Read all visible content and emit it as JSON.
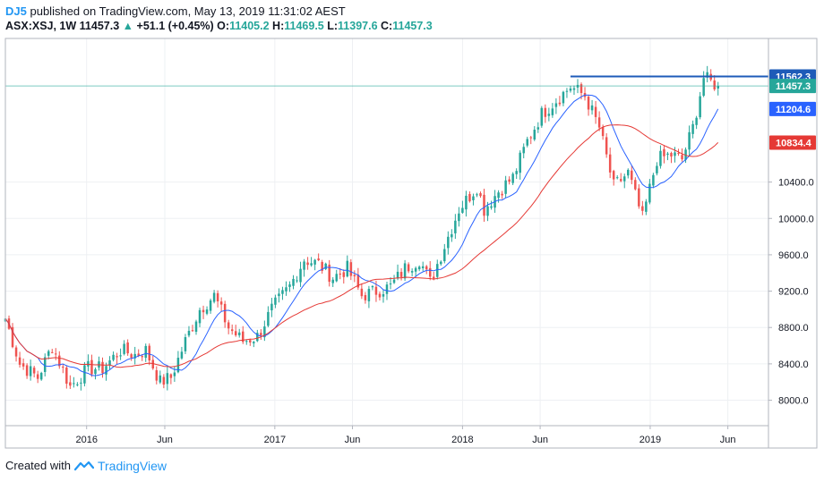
{
  "header": {
    "user": "DJ5",
    "published": "published on TradingView.com, May 13, 2019 11:31:02 AEST"
  },
  "ohlc": {
    "symbol": "ASX:XSJ, 1W",
    "last": "11457.3",
    "change": "+51.1 (+0.45%)",
    "o_label": "O:",
    "o": "11405.2",
    "h_label": "H:",
    "h": "11469.5",
    "l_label": "L:",
    "l": "11397.6",
    "c_label": "C:",
    "c": "11457.3"
  },
  "footer": {
    "created_with": "Created with",
    "brand": "TradingView"
  },
  "colors": {
    "up": "#26a69a",
    "down": "#ef5350",
    "ma_fast": "#2962ff",
    "ma_slow": "#e53935",
    "resistance": "#1e5bb8",
    "price_line": "#26a69a"
  },
  "chart_data": {
    "type": "candlestick",
    "title": "ASX:XSJ, 1W",
    "y_axis_ticks": [
      8000,
      8400,
      8800,
      9200,
      9600,
      10000,
      10400
    ],
    "y_axis_tick_labels": [
      "8000.0",
      "8400.0",
      "8800.0",
      "9200.0",
      "9600.0",
      "10000.0",
      "10400.0"
    ],
    "ylim": [
      7720,
      11980
    ],
    "x_axis_labels": [
      {
        "label": "2016",
        "date": "2016-01-01"
      },
      {
        "label": "Jun",
        "date": "2016-06-01"
      },
      {
        "label": "2017",
        "date": "2017-01-01"
      },
      {
        "label": "Jun",
        "date": "2017-06-01"
      },
      {
        "label": "2018",
        "date": "2018-01-01"
      },
      {
        "label": "Jun",
        "date": "2018-06-01"
      },
      {
        "label": "2019",
        "date": "2019-01-01"
      },
      {
        "label": "Jun",
        "date": "2019-06-01"
      }
    ],
    "x_range": [
      "2015-07-27",
      "2019-08-19"
    ],
    "price_tags": [
      {
        "label": "11562.3",
        "value": 11562.3,
        "kind": "resistance"
      },
      {
        "label": "11457.3",
        "value": 11457.3,
        "kind": "last"
      },
      {
        "label": "11204.6",
        "value": 11204.6,
        "kind": "ma_fast"
      },
      {
        "label": "10834.4",
        "value": 10834.4,
        "kind": "ma_slow"
      }
    ],
    "resistance_line": {
      "value": 11562.3,
      "start": "2018-07-30"
    },
    "trend_points": [
      [
        "2015-07-27",
        8900
      ],
      [
        "2015-08-24",
        8400
      ],
      [
        "2015-09-28",
        8250
      ],
      [
        "2015-10-26",
        8600
      ],
      [
        "2015-11-30",
        8150
      ],
      [
        "2016-01-04",
        8350
      ],
      [
        "2016-02-01",
        8350
      ],
      [
        "2016-03-07",
        8550
      ],
      [
        "2016-04-04",
        8500
      ],
      [
        "2016-04-25",
        8550
      ],
      [
        "2016-05-23",
        8200
      ],
      [
        "2016-06-13",
        8250
      ],
      [
        "2016-07-11",
        8650
      ],
      [
        "2016-08-08",
        9000
      ],
      [
        "2016-09-05",
        9150
      ],
      [
        "2016-10-03",
        8800
      ],
      [
        "2016-10-31",
        8650
      ],
      [
        "2016-11-28",
        8700
      ],
      [
        "2016-12-26",
        9000
      ],
      [
        "2017-01-30",
        9250
      ],
      [
        "2017-02-27",
        9550
      ],
      [
        "2017-03-27",
        9500
      ],
      [
        "2017-04-24",
        9350
      ],
      [
        "2017-05-22",
        9450
      ],
      [
        "2017-06-19",
        9150
      ],
      [
        "2017-07-17",
        9200
      ],
      [
        "2017-08-14",
        9250
      ],
      [
        "2017-09-11",
        9450
      ],
      [
        "2017-10-09",
        9550
      ],
      [
        "2017-10-30",
        9300
      ],
      [
        "2017-11-27",
        9700
      ],
      [
        "2017-12-25",
        10100
      ],
      [
        "2018-01-29",
        10350
      ],
      [
        "2018-02-12",
        10100
      ],
      [
        "2018-03-12",
        10300
      ],
      [
        "2018-04-09",
        10450
      ],
      [
        "2018-05-07",
        10850
      ],
      [
        "2018-06-04",
        11150
      ],
      [
        "2018-07-02",
        11300
      ],
      [
        "2018-07-30",
        11450
      ],
      [
        "2018-08-27",
        11350
      ],
      [
        "2018-09-24",
        11000
      ],
      [
        "2018-10-22",
        10350
      ],
      [
        "2018-11-19",
        10500
      ],
      [
        "2018-12-17",
        10000
      ],
      [
        "2019-01-14",
        10650
      ],
      [
        "2019-02-11",
        10700
      ],
      [
        "2019-03-04",
        10650
      ],
      [
        "2019-03-25",
        11000
      ],
      [
        "2019-04-15",
        11550
      ],
      [
        "2019-04-29",
        11500
      ],
      [
        "2019-05-13",
        11457.3
      ]
    ],
    "series": [
      {
        "name": "MA fast",
        "kind": "ma_fast",
        "last": 11204.6
      },
      {
        "name": "MA slow",
        "kind": "ma_slow",
        "last": 10834.4
      }
    ]
  }
}
